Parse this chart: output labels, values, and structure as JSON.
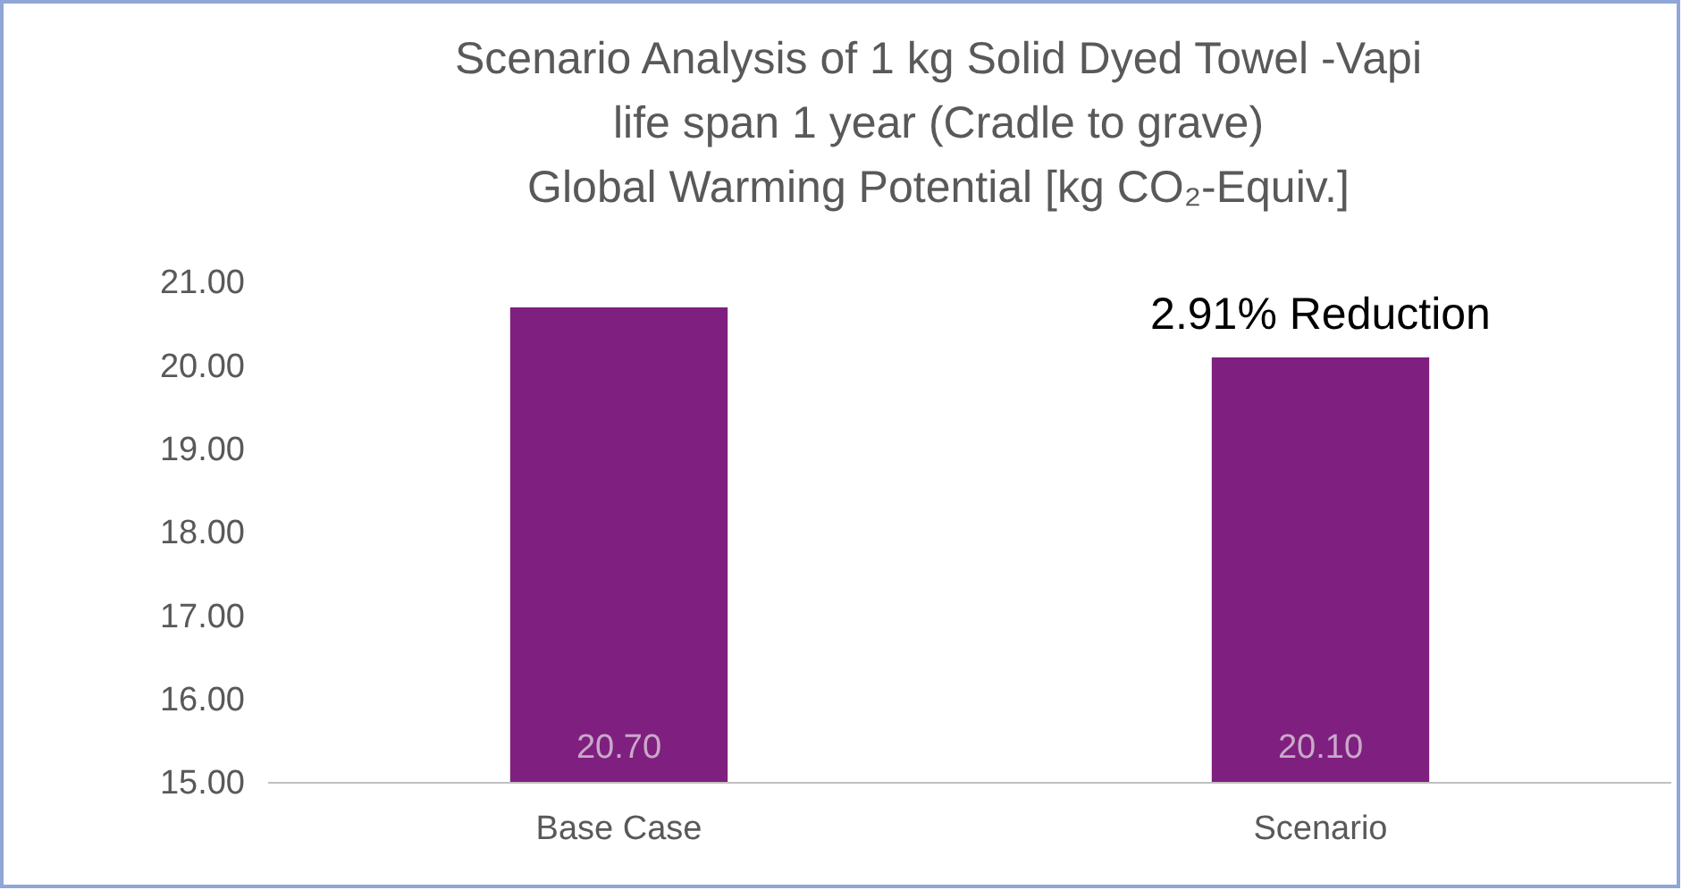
{
  "chart_data": {
    "type": "bar",
    "title": "Scenario Analysis of 1 kg Solid Dyed Towel -Vapi\nlife span 1 year (Cradle to grave)\nGlobal Warming Potential [kg CO₂-Equiv.]",
    "categories": [
      "Base Case",
      "Scenario"
    ],
    "values": [
      20.7,
      20.1
    ],
    "color": "#7f1f7f",
    "value_labels": [
      "20.70",
      "20.10"
    ],
    "ylim": [
      15,
      21
    ],
    "yticks": [
      {
        "value": 15,
        "label": "15.00"
      },
      {
        "value": 16,
        "label": "16.00"
      },
      {
        "value": 17,
        "label": "17.00"
      },
      {
        "value": 18,
        "label": "18.00"
      },
      {
        "value": 19,
        "label": "19.00"
      },
      {
        "value": 20,
        "label": "20.00"
      },
      {
        "value": 21,
        "label": "21.00"
      }
    ],
    "grid": false,
    "annotations": [
      {
        "text": "2.91% Reduction",
        "x": "Scenario",
        "y": 20.1
      }
    ]
  }
}
